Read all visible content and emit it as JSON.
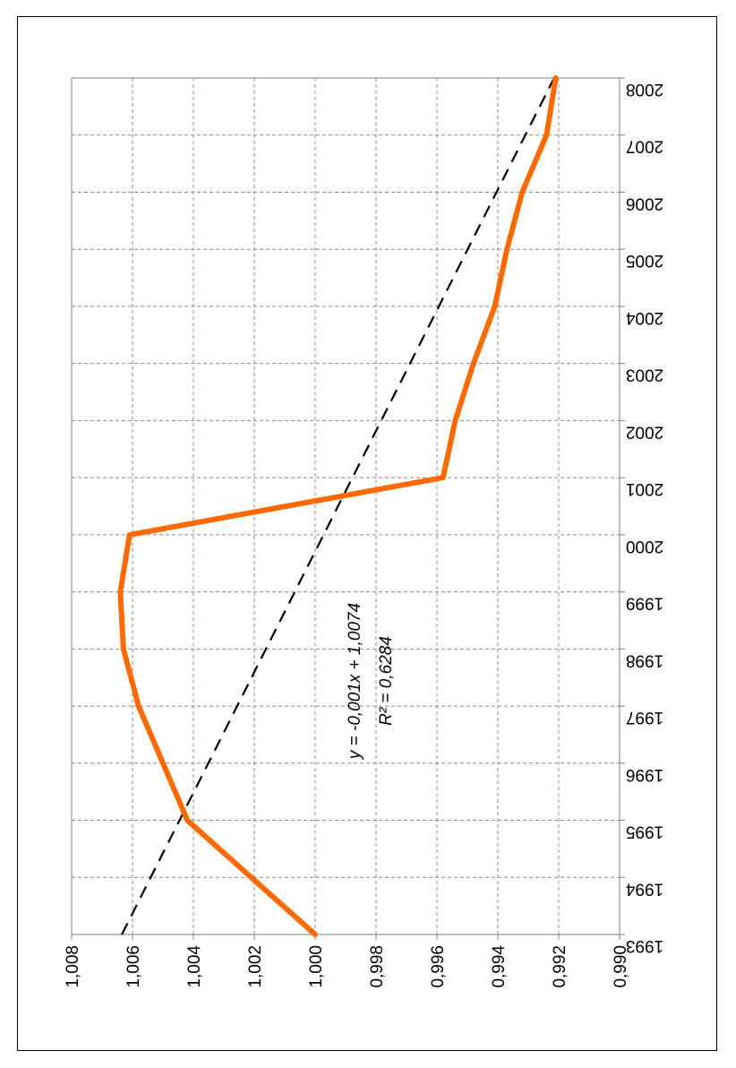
{
  "chart_data": {
    "type": "line",
    "x": [
      1993,
      1994,
      1995,
      1996,
      1997,
      1998,
      1999,
      2000,
      2001,
      2002,
      2003,
      2004,
      2005,
      2006,
      2007,
      2008
    ],
    "x_tick_labels": [
      "1993",
      "1994",
      "1995",
      "1996",
      "1997",
      "1998",
      "1999",
      "2000",
      "2001",
      "2002",
      "2003",
      "2004",
      "2005",
      "2006",
      "2007",
      "2008"
    ],
    "series": [
      {
        "values": [
          1.0,
          1.0021,
          1.0042,
          1.005,
          1.0058,
          1.0063,
          1.0064,
          1.0061,
          0.9958,
          0.9954,
          0.9948,
          0.9941,
          0.9937,
          0.9932,
          0.9924,
          0.9921
        ],
        "color": "#FF6A00"
      }
    ],
    "trendline": {
      "type": "linear",
      "start": 1.00635,
      "end": 0.99215,
      "color": "#000000",
      "equation": "y = -0,001x + 1,0074",
      "r_squared": "R² = 0,6284"
    },
    "y_tick_labels": [
      "1,008",
      "1,006",
      "1,004",
      "1,002",
      "1,000",
      "0,998",
      "0,996",
      "0,994",
      "0,992",
      "0,990"
    ],
    "ylim": [
      0.99,
      1.008
    ],
    "xlim": [
      1993,
      2008
    ],
    "grid": true,
    "orientation": "rotated-90-clockwise"
  }
}
